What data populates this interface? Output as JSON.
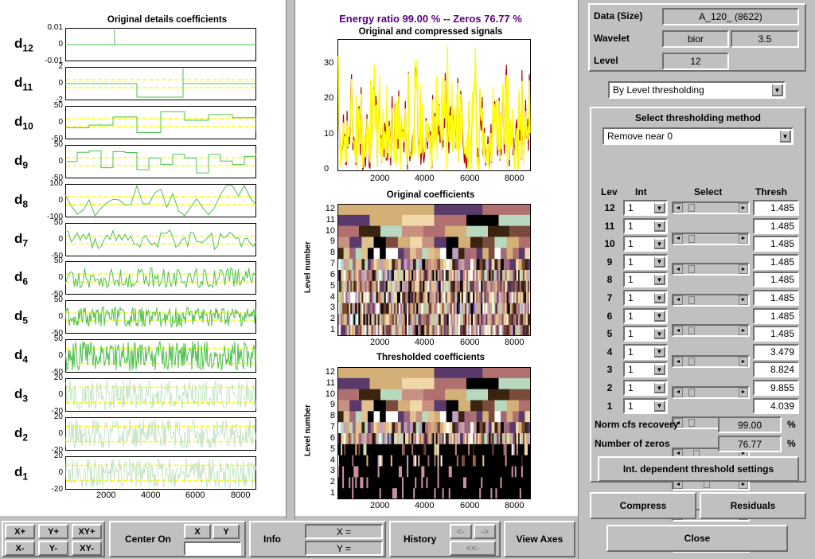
{
  "left_panel": {
    "title": "Original details coefficients",
    "rows": [
      {
        "name": "d",
        "sub": "12",
        "ticks": [
          "0.01",
          "0",
          "-0.01"
        ]
      },
      {
        "name": "d",
        "sub": "11",
        "ticks": [
          "2",
          "0",
          "-2"
        ]
      },
      {
        "name": "d",
        "sub": "10",
        "ticks": [
          "50",
          "0",
          "-50"
        ]
      },
      {
        "name": "d",
        "sub": "9",
        "ticks": [
          "50",
          "0",
          "-50"
        ]
      },
      {
        "name": "d",
        "sub": "8",
        "ticks": [
          "100",
          "0",
          "-100"
        ]
      },
      {
        "name": "d",
        "sub": "7",
        "ticks": [
          "50",
          "0",
          "-50"
        ]
      },
      {
        "name": "d",
        "sub": "6",
        "ticks": [
          "50",
          "0",
          "-50"
        ]
      },
      {
        "name": "d",
        "sub": "5",
        "ticks": [
          "50",
          "0",
          "-50"
        ]
      },
      {
        "name": "d",
        "sub": "4",
        "ticks": [
          "50",
          "0",
          "-50"
        ]
      },
      {
        "name": "d",
        "sub": "3",
        "ticks": [
          "20",
          "0",
          "-20"
        ]
      },
      {
        "name": "d",
        "sub": "2",
        "ticks": [
          "20",
          "0",
          "-20"
        ]
      },
      {
        "name": "d",
        "sub": "1",
        "ticks": [
          "20",
          "0",
          "-20"
        ]
      }
    ],
    "x_ticks": [
      "2000",
      "4000",
      "6000",
      "8000"
    ]
  },
  "middle_panel": {
    "energy_title": "Energy ratio 99.00 %  -- Zeros 76.77 %",
    "signal_title": "Original and compressed signals",
    "signal_y_ticks": [
      "30",
      "20",
      "10",
      "0"
    ],
    "x_ticks": [
      "2000",
      "4000",
      "6000",
      "8000"
    ],
    "orig_coefs_title": "Original coefficients",
    "thr_coefs_title": "Thresholded coefficients",
    "level_axis_label": "Level number",
    "level_ticks": [
      "12",
      "11",
      "10",
      "9",
      "8",
      "7",
      "6",
      "5",
      "4",
      "3",
      "2",
      "1"
    ]
  },
  "right_panel": {
    "data_label": "Data  (Size)",
    "data_value": "A_120_  (8622)",
    "wavelet_label": "Wavelet",
    "wavelet_name": "bior",
    "wavelet_num": "3.5",
    "level_label": "Level",
    "level_value": "12",
    "mode_selected": "By Level thresholding",
    "select_method_title": "Select thresholding method",
    "method_selected": "Remove near 0",
    "col_lev": "Lev",
    "col_int": "Int",
    "col_select": "Select",
    "col_thresh": "Thresh",
    "levels": [
      {
        "lev": "12",
        "int": "1",
        "thresh": "1.485",
        "pos": 0.1
      },
      {
        "lev": "11",
        "int": "1",
        "thresh": "1.485",
        "pos": 0.1
      },
      {
        "lev": "10",
        "int": "1",
        "thresh": "1.485",
        "pos": 0.1
      },
      {
        "lev": "9",
        "int": "1",
        "thresh": "1.485",
        "pos": 0.1
      },
      {
        "lev": "8",
        "int": "1",
        "thresh": "1.485",
        "pos": 0.1
      },
      {
        "lev": "7",
        "int": "1",
        "thresh": "1.485",
        "pos": 0.1
      },
      {
        "lev": "6",
        "int": "1",
        "thresh": "1.485",
        "pos": 0.1
      },
      {
        "lev": "5",
        "int": "1",
        "thresh": "1.485",
        "pos": 0.1
      },
      {
        "lev": "4",
        "int": "1",
        "thresh": "3.479",
        "pos": 0.2
      },
      {
        "lev": "3",
        "int": "1",
        "thresh": "8.824",
        "pos": 0.4
      },
      {
        "lev": "2",
        "int": "1",
        "thresh": "9.855",
        "pos": 0.44
      },
      {
        "lev": "1",
        "int": "1",
        "thresh": "4.039",
        "pos": 0.32
      }
    ],
    "norm_label": "Norm cfs recovery",
    "norm_value": "99.00",
    "zeros_label": "Number of zeros",
    "zeros_value": "76.77",
    "percent": "%",
    "int_dep_button": "Int. dependent threshold settings",
    "compress_button": "Compress",
    "residuals_button": "Residuals",
    "close_button": "Close"
  },
  "toolbar": {
    "xplus": "X+",
    "yplus": "Y+",
    "xyplus": "XY+",
    "xminus": "X-",
    "yminus": "Y-",
    "xyminus": "XY-",
    "center_on": "Center On",
    "x": "X",
    "y": "Y",
    "info": "Info",
    "x_eq": "X =",
    "y_eq": "Y =",
    "history": "History",
    "hist_back": "<-",
    "hist_fwd": "->",
    "hist_home": "<<-",
    "view_axes": "View Axes"
  },
  "colors": {
    "background": "#c0c0c0",
    "signal_yellow": "#ffff00",
    "signal_red": "#b00000",
    "detail_green": "#4fc04f",
    "threshold_yellow": "#ffff00",
    "title_purple": "#5a0080"
  }
}
